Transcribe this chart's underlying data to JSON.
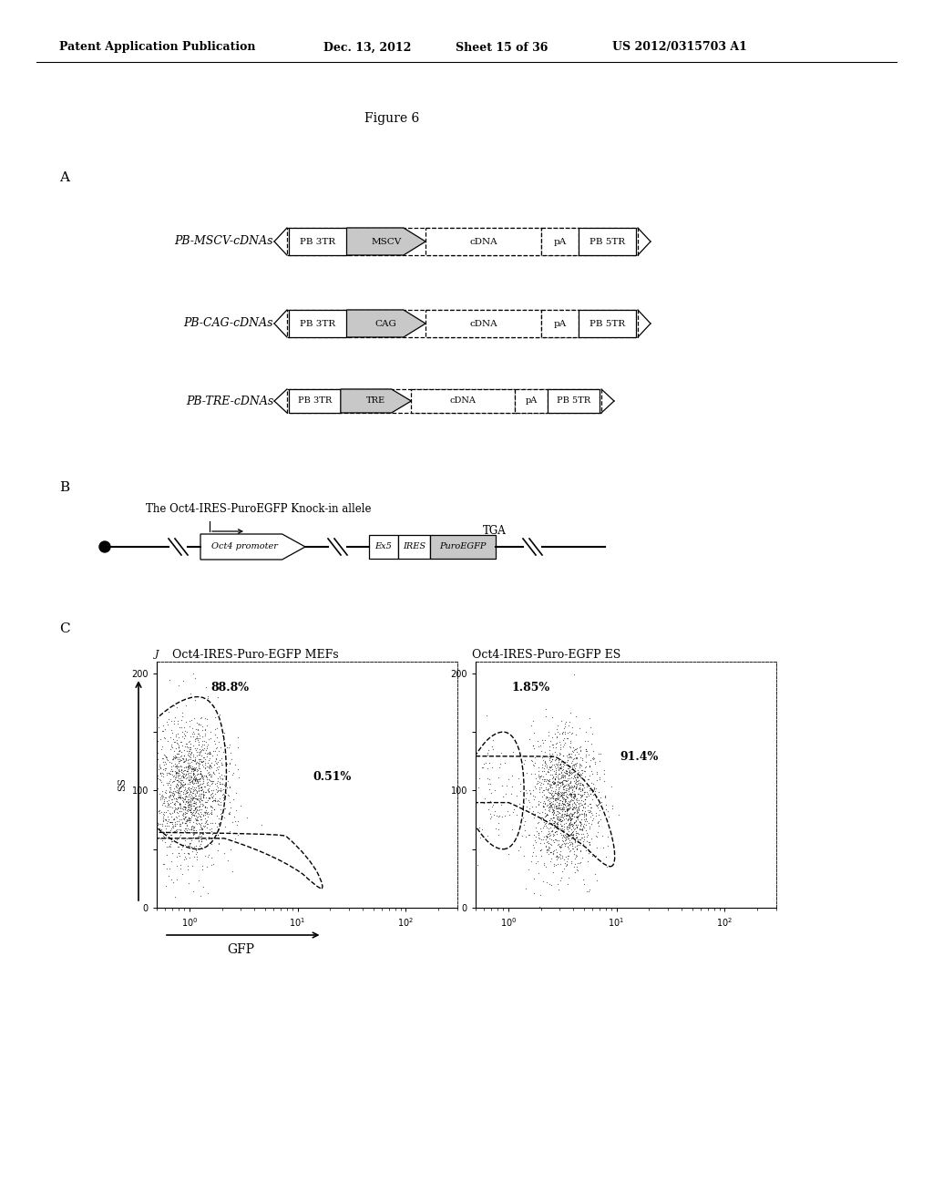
{
  "title_header": "Patent Application Publication",
  "header_date": "Dec. 13, 2012",
  "header_sheet": "Sheet 15 of 36",
  "header_patent": "US 2012/0315703 A1",
  "figure_label": "Figure 6",
  "section_A_label": "A",
  "section_B_label": "B",
  "section_C_label": "C",
  "row1_label": "PB-MSCV-cDNAs",
  "row2_label": "PB-CAG-cDNAs",
  "row3_label": "PB-TRE-cDNAs",
  "row1_elements": [
    "PB 3TR",
    "MSCV",
    "cDNA",
    "pA",
    "PB 5TR"
  ],
  "row2_elements": [
    "PB 3TR",
    "CAG",
    "cDNA",
    "pA",
    "PB 5TR"
  ],
  "row3_elements": [
    "PB 3TR",
    "TRE",
    "cDNA",
    "pA",
    "PB 5TR"
  ],
  "b_title": "The Oct4-IRES-PuroEGFP Knock-in allele",
  "b_tga": "TGA",
  "b_elements": [
    "Oct4 promoter",
    "Ex5",
    "IRES",
    "PuroEGFP"
  ],
  "c_left_title": "Oct4-IRES-Puro-EGFP MEFs",
  "c_right_title": "Oct4-IRES-Puro-EGFP ES",
  "c_left_pct1": "88.8%",
  "c_left_pct2": "0.51%",
  "c_right_pct1": "1.85%",
  "c_right_pct2": "91.4%",
  "bg_color": "#ffffff",
  "box_fill_gray": "#c8c8c8",
  "box_fill_white": "#ffffff",
  "text_color": "#000000",
  "font_size_header": 9,
  "font_size_element": 7
}
